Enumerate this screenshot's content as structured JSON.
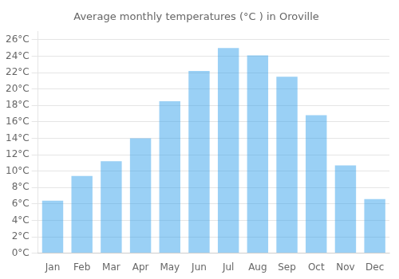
{
  "chart_data": {
    "type": "bar",
    "title": "Average monthly temperatures (°C ) in Oroville",
    "categories": [
      "Jan",
      "Feb",
      "Mar",
      "Apr",
      "May",
      "Jun",
      "Jul",
      "Aug",
      "Sep",
      "Oct",
      "Nov",
      "Dec"
    ],
    "values": [
      6.4,
      9.4,
      11.2,
      14.0,
      18.5,
      22.2,
      25.0,
      24.1,
      21.5,
      16.8,
      10.7,
      6.6
    ],
    "ylim": [
      0,
      27
    ],
    "yticks": [
      {
        "value": 0,
        "label": "0°C"
      },
      {
        "value": 2,
        "label": "2°C"
      },
      {
        "value": 4,
        "label": "4°C"
      },
      {
        "value": 6,
        "label": "6°C"
      },
      {
        "value": 8,
        "label": "8°C"
      },
      {
        "value": 10,
        "label": "10°C"
      },
      {
        "value": 12,
        "label": "12°C"
      },
      {
        "value": 14,
        "label": "14°C"
      },
      {
        "value": 16,
        "label": "16°C"
      },
      {
        "value": 18,
        "label": "18°C"
      },
      {
        "value": 20,
        "label": "20°C"
      },
      {
        "value": 22,
        "label": "22°C"
      },
      {
        "value": 24,
        "label": "24°C"
      },
      {
        "value": 26,
        "label": "26°C"
      }
    ],
    "grid": true
  }
}
